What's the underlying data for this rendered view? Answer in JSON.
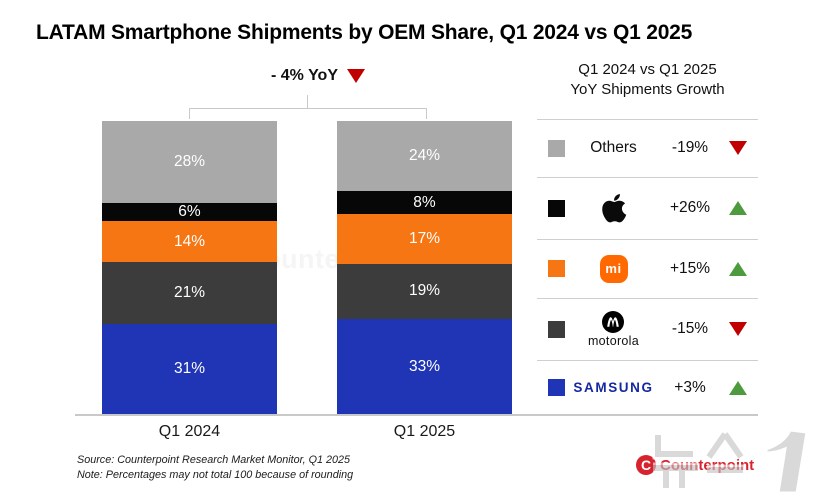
{
  "title": "LATAM Smartphone Shipments by OEM Share, Q1 2024 vs Q1 2025",
  "yoy": {
    "label": "- 4% YoY",
    "direction": "down"
  },
  "chart_data": {
    "type": "bar",
    "stacked": true,
    "unit": "%",
    "title": "LATAM Smartphone Shipments by OEM Share, Q1 2024 vs Q1 2025",
    "categories": [
      "Q1 2024",
      "Q1 2025"
    ],
    "series_top_to_bottom": [
      {
        "name": "Others",
        "color": "#A9A9A9",
        "values": [
          28,
          24
        ]
      },
      {
        "name": "Apple",
        "color": "#070707",
        "values": [
          6,
          8
        ]
      },
      {
        "name": "Xiaomi",
        "color": "#F57613",
        "values": [
          14,
          17
        ]
      },
      {
        "name": "Motorola",
        "color": "#3C3C3C",
        "values": [
          21,
          19
        ]
      },
      {
        "name": "Samsung",
        "color": "#1F35B5",
        "values": [
          31,
          33
        ]
      }
    ],
    "total_yoy_annotation": "- 4% YoY",
    "legend_position": "right",
    "grid": false
  },
  "legend": {
    "header_line1": "Q1 2024 vs Q1 2025",
    "header_line2": "YoY Shipments Growth",
    "rows": [
      {
        "label": "Others",
        "pct": "-19%",
        "direction": "down"
      },
      {
        "label": "Apple",
        "pct": "+26%",
        "direction": "up"
      },
      {
        "label": "Xiaomi",
        "pct": "+15%",
        "direction": "up"
      },
      {
        "label": "Motorola",
        "pct": "-15%",
        "direction": "down"
      },
      {
        "label": "Samsung",
        "pct": "+3%",
        "direction": "up"
      }
    ]
  },
  "logos": {
    "motorola_word": "motorola",
    "samsung_word": "SAMSUNG",
    "xiaomi_badge": "mi",
    "counterpoint_c": "C"
  },
  "footer": {
    "source": "Source: Counterpoint Research Market Monitor, Q1 2025",
    "note": "Note: Percentages may not total 100 because of rounding",
    "brand": "Counterpoint",
    "photo_watermark": "뉴스1"
  },
  "watermark_center": "Counterpoint",
  "colors": {
    "up": "#4E9A3F",
    "down": "#C00000",
    "samsung_logo": "#1428A0",
    "brand_red": "#D7232E",
    "axis": "#c9c9c9"
  }
}
